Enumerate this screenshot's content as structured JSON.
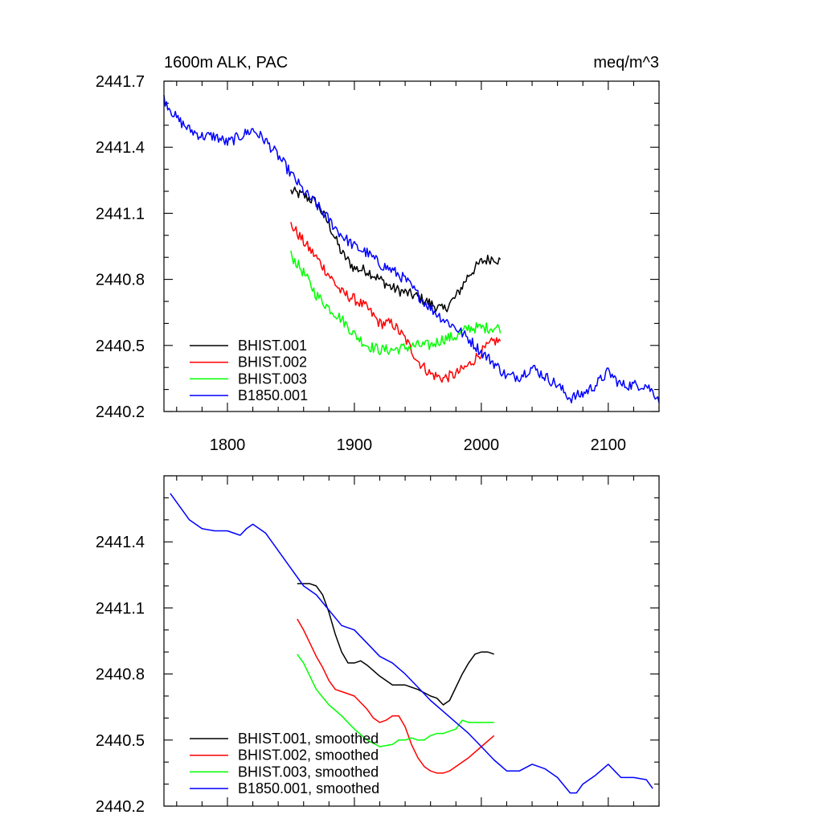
{
  "chart_data": [
    {
      "type": "line",
      "title": "1600m ALK, PAC",
      "units_label": "meq/m^3",
      "xlim": [
        1750,
        2140
      ],
      "ylim": [
        2440.2,
        2441.7
      ],
      "xticks": [
        1800,
        1900,
        2000,
        2100
      ],
      "xtick_labels": [
        "1800",
        "1900",
        "2000",
        "2100"
      ],
      "yticks": [
        2440.2,
        2440.5,
        2440.8,
        2441.1,
        2441.4,
        2441.7
      ],
      "ytick_labels": [
        "2440.2",
        "2440.5",
        "2440.8",
        "2441.1",
        "2441.4",
        "2441.7"
      ],
      "legend_position": "bottom-left",
      "series": [
        {
          "name": "BHIST.001",
          "color": "#000000",
          "noise": 0.025,
          "x": [
            1850,
            1860,
            1870,
            1880,
            1890,
            1900,
            1910,
            1920,
            1930,
            1940,
            1950,
            1960,
            1970,
            1980,
            1990,
            2000,
            2010,
            2015
          ],
          "y": [
            2441.2,
            2441.18,
            2441.15,
            2441.05,
            2440.92,
            2440.85,
            2440.84,
            2440.8,
            2440.76,
            2440.74,
            2440.72,
            2440.69,
            2440.66,
            2440.72,
            2440.82,
            2440.88,
            2440.9,
            2440.88
          ]
        },
        {
          "name": "BHIST.002",
          "color": "#ff0000",
          "noise": 0.025,
          "x": [
            1850,
            1860,
            1870,
            1880,
            1890,
            1900,
            1910,
            1920,
            1930,
            1940,
            1950,
            1960,
            1970,
            1980,
            1990,
            2000,
            2010,
            2015
          ],
          "y": [
            2441.05,
            2440.97,
            2440.9,
            2440.82,
            2440.74,
            2440.71,
            2440.67,
            2440.6,
            2440.6,
            2440.53,
            2440.43,
            2440.37,
            2440.35,
            2440.37,
            2440.41,
            2440.47,
            2440.52,
            2440.52
          ]
        },
        {
          "name": "BHIST.003",
          "color": "#00ff00",
          "noise": 0.025,
          "x": [
            1850,
            1860,
            1870,
            1880,
            1890,
            1900,
            1910,
            1920,
            1930,
            1940,
            1950,
            1960,
            1970,
            1980,
            1990,
            2000,
            2010,
            2015
          ],
          "y": [
            2440.91,
            2440.83,
            2440.73,
            2440.67,
            2440.62,
            2440.55,
            2440.5,
            2440.48,
            2440.48,
            2440.49,
            2440.5,
            2440.5,
            2440.53,
            2440.54,
            2440.58,
            2440.58,
            2440.58,
            2440.58
          ]
        },
        {
          "name": "B1850.001",
          "color": "#0000ff",
          "noise": 0.025,
          "x": [
            1750,
            1760,
            1770,
            1780,
            1790,
            1800,
            1810,
            1820,
            1830,
            1840,
            1850,
            1860,
            1870,
            1880,
            1890,
            1900,
            1910,
            1920,
            1930,
            1940,
            1950,
            1960,
            1970,
            1980,
            1990,
            2000,
            2010,
            2020,
            2030,
            2040,
            2050,
            2060,
            2070,
            2080,
            2090,
            2100,
            2110,
            2120,
            2130,
            2140
          ],
          "y": [
            2441.62,
            2441.53,
            2441.48,
            2441.45,
            2441.45,
            2441.42,
            2441.45,
            2441.48,
            2441.43,
            2441.36,
            2441.28,
            2441.2,
            2441.14,
            2441.07,
            2441.0,
            2440.95,
            2440.92,
            2440.87,
            2440.84,
            2440.8,
            2440.73,
            2440.67,
            2440.62,
            2440.58,
            2440.53,
            2440.47,
            2440.42,
            2440.36,
            2440.36,
            2440.4,
            2440.36,
            2440.32,
            2440.26,
            2440.28,
            2440.32,
            2440.38,
            2440.32,
            2440.32,
            2440.32,
            2440.26
          ]
        }
      ]
    },
    {
      "type": "line",
      "title": "",
      "xlim": [
        1750,
        2140
      ],
      "ylim": [
        2440.2,
        2441.7
      ],
      "xticks": [
        1800,
        1900,
        2000,
        2100
      ],
      "yticks": [
        2440.2,
        2440.5,
        2440.8,
        2441.1,
        2441.4
      ],
      "ytick_labels": [
        "2440.2",
        "2440.5",
        "2440.8",
        "2441.1",
        "2441.4"
      ],
      "legend_position": "bottom-left",
      "series": [
        {
          "name": "BHIST.001, smoothed",
          "color": "#000000",
          "x": [
            1855,
            1860,
            1865,
            1870,
            1875,
            1880,
            1885,
            1890,
            1895,
            1900,
            1905,
            1910,
            1920,
            1930,
            1940,
            1950,
            1960,
            1965,
            1970,
            1975,
            1980,
            1985,
            1990,
            1995,
            2000,
            2005,
            2010
          ],
          "y": [
            2441.21,
            2441.21,
            2441.21,
            2441.2,
            2441.16,
            2441.08,
            2440.98,
            2440.9,
            2440.85,
            2440.85,
            2440.86,
            2440.84,
            2440.79,
            2440.75,
            2440.75,
            2440.73,
            2440.7,
            2440.69,
            2440.66,
            2440.68,
            2440.74,
            2440.8,
            2440.85,
            2440.89,
            2440.9,
            2440.9,
            2440.89
          ]
        },
        {
          "name": "BHIST.002, smoothed",
          "color": "#ff0000",
          "x": [
            1855,
            1860,
            1865,
            1870,
            1875,
            1880,
            1885,
            1890,
            1900,
            1910,
            1915,
            1920,
            1925,
            1930,
            1935,
            1940,
            1945,
            1950,
            1955,
            1960,
            1965,
            1970,
            1975,
            1980,
            1990,
            2000,
            2010
          ],
          "y": [
            2441.05,
            2441.0,
            2440.94,
            2440.88,
            2440.83,
            2440.77,
            2440.73,
            2440.72,
            2440.7,
            2440.64,
            2440.6,
            2440.58,
            2440.59,
            2440.61,
            2440.61,
            2440.56,
            2440.48,
            2440.42,
            2440.38,
            2440.36,
            2440.35,
            2440.35,
            2440.36,
            2440.38,
            2440.42,
            2440.47,
            2440.52
          ]
        },
        {
          "name": "BHIST.003, smoothed",
          "color": "#00ff00",
          "x": [
            1855,
            1860,
            1865,
            1870,
            1880,
            1890,
            1900,
            1910,
            1920,
            1930,
            1935,
            1940,
            1945,
            1950,
            1955,
            1960,
            1965,
            1970,
            1975,
            1980,
            1985,
            1990,
            2000,
            2010
          ],
          "y": [
            2440.89,
            2440.85,
            2440.79,
            2440.73,
            2440.66,
            2440.61,
            2440.55,
            2440.5,
            2440.47,
            2440.48,
            2440.5,
            2440.5,
            2440.51,
            2440.5,
            2440.5,
            2440.52,
            2440.53,
            2440.53,
            2440.54,
            2440.55,
            2440.59,
            2440.58,
            2440.58,
            2440.58
          ]
        },
        {
          "name": "B1850.001, smoothed",
          "color": "#0000ff",
          "x": [
            1755,
            1760,
            1770,
            1780,
            1790,
            1800,
            1810,
            1815,
            1820,
            1830,
            1840,
            1850,
            1860,
            1870,
            1880,
            1890,
            1900,
            1910,
            1920,
            1930,
            1940,
            1950,
            1960,
            1970,
            1980,
            1990,
            2000,
            2010,
            2020,
            2030,
            2040,
            2050,
            2060,
            2070,
            2075,
            2080,
            2090,
            2100,
            2105,
            2110,
            2120,
            2130,
            2135
          ],
          "y": [
            2441.62,
            2441.58,
            2441.5,
            2441.46,
            2441.45,
            2441.45,
            2441.43,
            2441.46,
            2441.48,
            2441.44,
            2441.36,
            2441.28,
            2441.2,
            2441.16,
            2441.09,
            2441.02,
            2441.0,
            2440.94,
            2440.88,
            2440.85,
            2440.8,
            2440.74,
            2440.68,
            2440.63,
            2440.58,
            2440.53,
            2440.47,
            2440.41,
            2440.36,
            2440.36,
            2440.39,
            2440.37,
            2440.33,
            2440.26,
            2440.26,
            2440.3,
            2440.34,
            2440.39,
            2440.36,
            2440.33,
            2440.33,
            2440.32,
            2440.28
          ]
        }
      ]
    }
  ]
}
